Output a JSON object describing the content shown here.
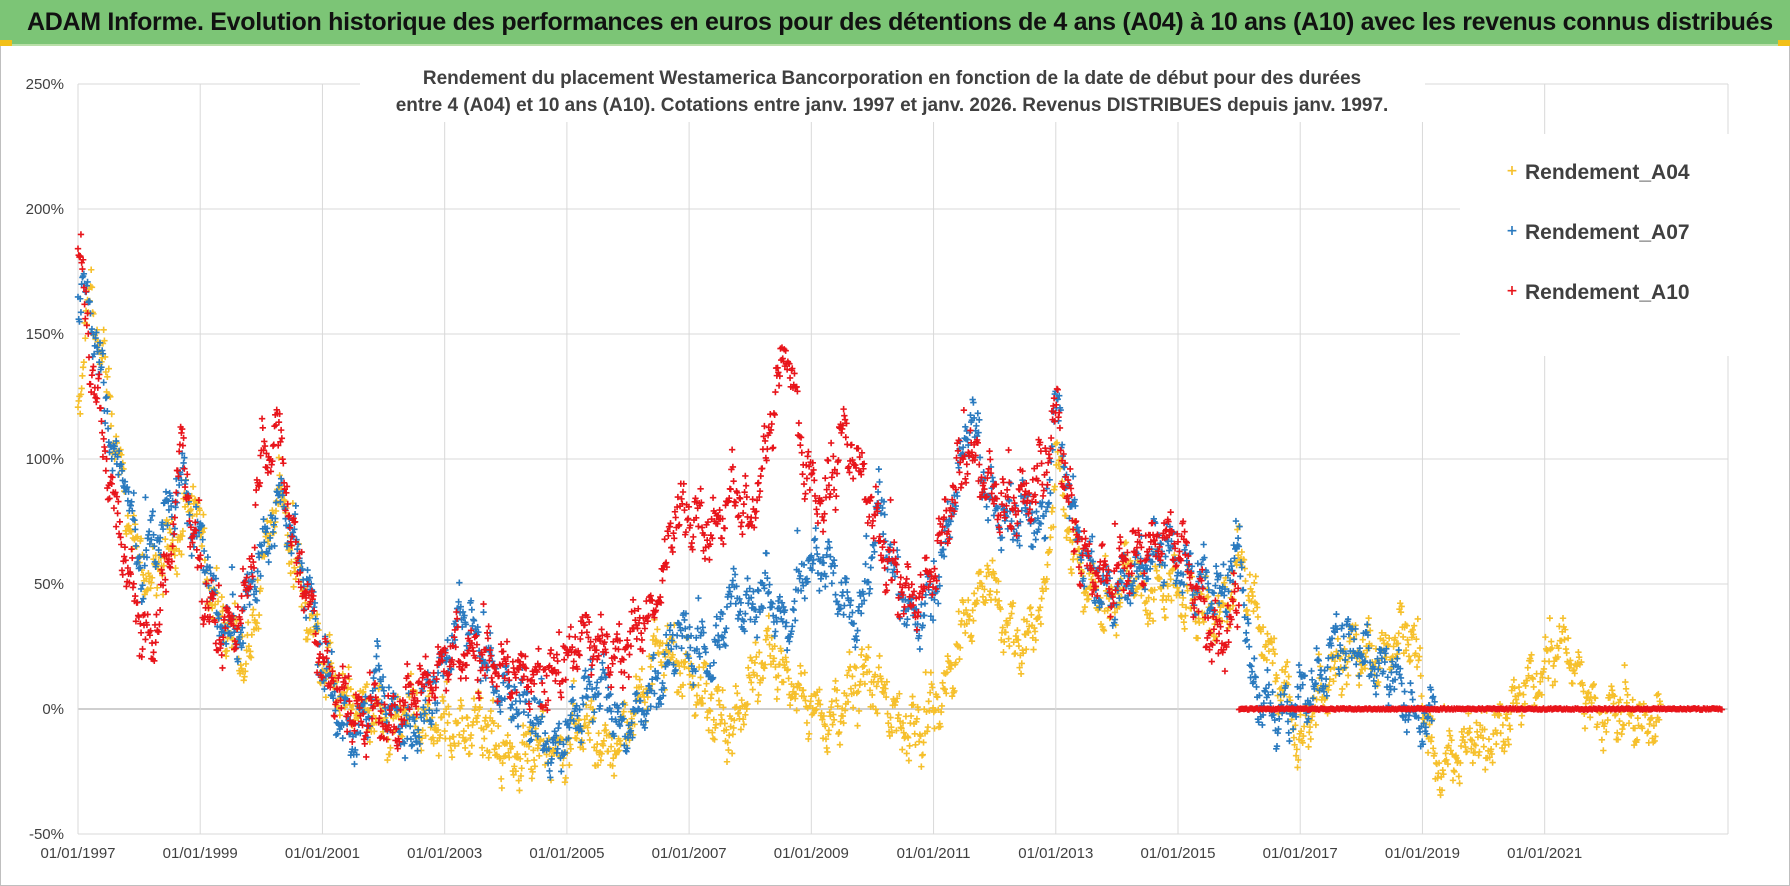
{
  "header": {
    "title": "ADAM Informe. Evolution historique des performances en euros pour des détentions de 4 ans (A04) à 10 ans (A10) avec les revenus connus distribués"
  },
  "colors": {
    "header_bg": "#7cc576",
    "grid": "#d9d9d9",
    "zero_line": "#bfbfbf"
  },
  "chart_data": {
    "type": "scatter",
    "title_line1": "Rendement du placement Westamerica Bancorporation en fonction de la date de début pour des durées",
    "title_line2": "entre 4 (A04) et 10 ans (A10).  Cotations entre janv. 1997 et janv. 2026. Revenus DISTRIBUES  depuis janv. 1997.",
    "xlabel": "",
    "ylabel": "",
    "x_range": [
      1997.0,
      2024.0
    ],
    "ylim": [
      -50,
      250
    ],
    "y_ticks": [
      -50,
      0,
      50,
      100,
      150,
      200,
      250
    ],
    "y_tick_labels": [
      "-50%",
      "0%",
      "50%",
      "100%",
      "150%",
      "200%",
      "250%"
    ],
    "x_tick_labels": [
      "01/01/1997",
      "01/01/1999",
      "01/01/2001",
      "01/01/2003",
      "01/01/2005",
      "01/01/2007",
      "01/01/2009",
      "01/01/2011",
      "01/01/2013",
      "01/01/2015",
      "01/01/2017",
      "01/01/2019",
      "01/01/2021"
    ],
    "x_tick_years": [
      1997,
      1999,
      2001,
      2003,
      2005,
      2007,
      2009,
      2011,
      2013,
      2015,
      2017,
      2019,
      2021
    ],
    "grid": true,
    "legend_position": "right",
    "marker": "+",
    "series": [
      {
        "name": "Rendement_A04",
        "color": "#f6c02c",
        "x": [
          1997.0,
          1997.2,
          1997.4,
          1997.6,
          1997.8,
          1998.0,
          1998.2,
          1998.5,
          1998.7,
          1998.9,
          1999.1,
          1999.3,
          1999.6,
          1999.8,
          2000.0,
          2000.3,
          2000.5,
          2000.8,
          2001.0,
          2001.3,
          2001.6,
          2001.9,
          2002.1,
          2002.4,
          2002.7,
          2003.0,
          2003.3,
          2003.6,
          2003.9,
          2004.2,
          2004.5,
          2004.8,
          2005.0,
          2005.3,
          2005.6,
          2005.9,
          2006.2,
          2006.5,
          2006.8,
          2007.1,
          2007.4,
          2007.7,
          2008.0,
          2008.3,
          2008.6,
          2008.9,
          2009.2,
          2009.5,
          2009.8,
          2010.1,
          2010.4,
          2010.7,
          2011.0,
          2011.3,
          2011.6,
          2011.9,
          2012.2,
          2012.5,
          2012.8,
          2013.0,
          2013.3,
          2013.6,
          2013.9,
          2014.2,
          2014.5,
          2014.8,
          2015.1,
          2015.4,
          2015.7,
          2016.0,
          2016.2,
          2016.5,
          2016.8,
          2017.0,
          2017.3,
          2017.6,
          2017.9,
          2018.2,
          2018.5,
          2018.8,
          2019.0,
          2019.2,
          2019.5,
          2019.8,
          2020.1,
          2020.4,
          2020.7,
          2021.0,
          2021.3,
          2021.6,
          2021.9,
          2022.2,
          2022.6,
          2022.9
        ],
        "y": [
          120,
          165,
          140,
          110,
          80,
          60,
          50,
          65,
          70,
          90,
          55,
          40,
          25,
          20,
          55,
          90,
          60,
          35,
          20,
          8,
          2,
          -2,
          -8,
          0,
          -5,
          -8,
          -10,
          -5,
          -15,
          -20,
          -12,
          -18,
          -15,
          -5,
          -18,
          -10,
          5,
          25,
          20,
          10,
          0,
          -10,
          10,
          25,
          10,
          5,
          -5,
          0,
          15,
          10,
          -5,
          -10,
          0,
          15,
          40,
          55,
          30,
          25,
          40,
          100,
          60,
          45,
          40,
          55,
          45,
          50,
          45,
          40,
          35,
          60,
          45,
          20,
          5,
          -15,
          5,
          15,
          25,
          20,
          25,
          30,
          10,
          -25,
          -20,
          -10,
          -15,
          -5,
          10,
          15,
          30,
          10,
          -5,
          0,
          -5,
          -5
        ]
      },
      {
        "name": "Rendement_A07",
        "color": "#2a7abf",
        "x": [
          1997.0,
          1997.2,
          1997.4,
          1997.6,
          1997.8,
          1998.0,
          1998.2,
          1998.5,
          1998.7,
          1998.9,
          1999.1,
          1999.3,
          1999.6,
          1999.8,
          2000.0,
          2000.3,
          2000.5,
          2000.8,
          2001.0,
          2001.3,
          2001.6,
          2001.9,
          2002.1,
          2002.4,
          2002.7,
          2003.0,
          2003.3,
          2003.6,
          2003.9,
          2004.2,
          2004.5,
          2004.8,
          2005.0,
          2005.3,
          2005.6,
          2005.9,
          2006.2,
          2006.5,
          2006.8,
          2007.1,
          2007.4,
          2007.7,
          2008.0,
          2008.3,
          2008.6,
          2008.9,
          2009.2,
          2009.5,
          2009.8,
          2010.1,
          2010.4,
          2010.7,
          2011.0,
          2011.3,
          2011.6,
          2011.9,
          2012.2,
          2012.5,
          2012.8,
          2013.0,
          2013.3,
          2013.6,
          2013.9,
          2014.2,
          2014.5,
          2014.8,
          2015.1,
          2015.4,
          2015.7,
          2016.0,
          2016.2,
          2016.5,
          2016.8,
          2017.0,
          2017.3,
          2017.6,
          2017.9,
          2018.2,
          2018.5,
          2018.8,
          2019.0,
          2019.2
        ],
        "y": [
          170,
          160,
          130,
          100,
          90,
          55,
          65,
          80,
          95,
          70,
          60,
          35,
          30,
          45,
          60,
          85,
          70,
          45,
          20,
          -5,
          -10,
          15,
          0,
          -10,
          0,
          20,
          40,
          25,
          10,
          5,
          -5,
          -18,
          -10,
          5,
          10,
          -10,
          0,
          10,
          30,
          25,
          20,
          45,
          40,
          50,
          30,
          55,
          60,
          45,
          35,
          85,
          50,
          35,
          45,
          80,
          120,
          85,
          75,
          80,
          70,
          120,
          75,
          55,
          45,
          50,
          60,
          65,
          55,
          50,
          45,
          65,
          10,
          0,
          -5,
          5,
          10,
          30,
          25,
          20,
          15,
          0,
          -5,
          0
        ]
      },
      {
        "name": "Rendement_A10",
        "color": "#e8151b",
        "x": [
          1997.0,
          1997.2,
          1997.4,
          1997.6,
          1997.8,
          1998.0,
          1998.2,
          1998.5,
          1998.7,
          1998.9,
          1999.1,
          1999.3,
          1999.6,
          1999.8,
          2000.0,
          2000.3,
          2000.5,
          2000.8,
          2001.0,
          2001.3,
          2001.6,
          2001.9,
          2002.1,
          2002.4,
          2002.7,
          2003.0,
          2003.3,
          2003.6,
          2003.9,
          2004.2,
          2004.5,
          2004.8,
          2005.0,
          2005.3,
          2005.6,
          2005.9,
          2006.2,
          2006.5,
          2006.8,
          2007.1,
          2007.4,
          2007.7,
          2008.0,
          2008.3,
          2008.6,
          2008.9,
          2009.2,
          2009.5,
          2009.8,
          2010.1,
          2010.4,
          2010.7,
          2011.0,
          2011.3,
          2011.6,
          2011.9,
          2012.2,
          2012.5,
          2012.8,
          2013.0,
          2013.3,
          2013.6,
          2013.9,
          2014.2,
          2014.5,
          2014.8,
          2015.1,
          2015.4,
          2015.7,
          2016.0
        ],
        "y": [
          190,
          140,
          110,
          80,
          55,
          35,
          25,
          60,
          110,
          65,
          45,
          30,
          35,
          50,
          100,
          110,
          70,
          40,
          20,
          5,
          -5,
          0,
          -10,
          5,
          10,
          20,
          25,
          20,
          15,
          15,
          10,
          15,
          20,
          30,
          25,
          20,
          35,
          45,
          80,
          75,
          70,
          90,
          75,
          110,
          150,
          95,
          80,
          110,
          95,
          70,
          50,
          45,
          55,
          85,
          105,
          90,
          80,
          85,
          95,
          120,
          70,
          55,
          50,
          60,
          65,
          70,
          65,
          40,
          25,
          45
        ]
      },
      {
        "name": "Rendement_A10",
        "color": "#e8151b",
        "note": "flat segment",
        "x": [
          2016.0,
          2023.9
        ],
        "y": [
          0,
          0
        ]
      }
    ]
  },
  "legend": {
    "items": [
      {
        "label": "Rendement_A04",
        "color": "#f6c02c"
      },
      {
        "label": "Rendement_A07",
        "color": "#2a7abf"
      },
      {
        "label": "Rendement_A10",
        "color": "#e8151b"
      }
    ]
  }
}
